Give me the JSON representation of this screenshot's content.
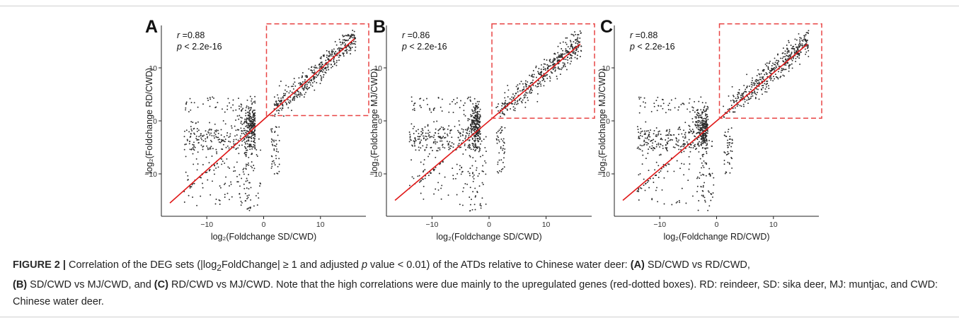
{
  "figure": {
    "panels": [
      {
        "letter": "A",
        "r_label": "r",
        "r_value": "=0.88",
        "p_label": "p",
        "p_value": " < 2.2e-16"
      },
      {
        "letter": "B",
        "r_label": "r",
        "r_value": "=0.86",
        "p_label": "p",
        "p_value": " < 2.2e-16"
      },
      {
        "letter": "C",
        "r_label": "r",
        "r_value": "=0.88",
        "p_label": "p",
        "p_value": " < 2.2e-16"
      }
    ]
  },
  "caption": {
    "lead": "FIGURE 2 |",
    "t1": " Correlation of the DEG sets (|log",
    "sub": "2",
    "t2": "FoldChange| ≥ 1 and adjusted ",
    "p": "p",
    "t3": " value < 0.01) of the ATDs relative to Chinese water deer: ",
    "a": "(A)",
    "t4": " SD/CWD vs RD/CWD,",
    "b": "(B)",
    "t5": " SD/CWD vs MJ/CWD, and ",
    "c": "(C)",
    "t6": " RD/CWD vs MJ/CWD. Note that the high correlations were due mainly to the upregulated genes (red-dotted boxes). RD: reindeer, SD: sika deer, MJ: muntjac, and CWD: Chinese water deer."
  },
  "colors": {
    "points": "#2b2b2b",
    "fit_line": "#e01818",
    "box": "#e84545",
    "axis": "#222222"
  },
  "chart_data": [
    {
      "type": "scatter",
      "panel": "A",
      "xlabel": "log₂(Foldchange SD/CWD)",
      "ylabel": "log₂(Foldchange RD/CWD)",
      "xticks": [
        -10,
        0,
        10
      ],
      "yticks": [
        -10,
        0,
        10
      ],
      "xlim": [
        -18,
        18
      ],
      "ylim": [
        -18,
        18
      ],
      "annotation": {
        "r": 0.88,
        "p": "< 2.2e-16"
      },
      "fit_line": {
        "x": [
          -16.5,
          16.0
        ],
        "y": [
          -15.5,
          15.5
        ]
      },
      "box": {
        "x": [
          0.5,
          18.5
        ],
        "y": [
          1.0,
          18.3
        ]
      },
      "grid": false,
      "seed": 11
    },
    {
      "type": "scatter",
      "panel": "B",
      "xlabel": "log₂(Foldchange SD/CWD)",
      "ylabel": "log₂(Foldchange MJ/CWD)",
      "xticks": [
        -10,
        0,
        10
      ],
      "yticks": [
        -10,
        0,
        10
      ],
      "xlim": [
        -18,
        18
      ],
      "ylim": [
        -18,
        18
      ],
      "annotation": {
        "r": 0.86,
        "p": "< 2.2e-16"
      },
      "fit_line": {
        "x": [
          -16.5,
          16.0
        ],
        "y": [
          -15.0,
          14.5
        ]
      },
      "box": {
        "x": [
          0.5,
          18.5
        ],
        "y": [
          0.5,
          18.3
        ]
      },
      "grid": false,
      "seed": 23
    },
    {
      "type": "scatter",
      "panel": "C",
      "xlabel": "log₂(Foldchange RD/CWD)",
      "ylabel": "log₂(Foldchange MJ/CWD)",
      "xticks": [
        -10,
        0,
        10
      ],
      "yticks": [
        -10,
        0,
        10
      ],
      "xlim": [
        -18,
        18
      ],
      "ylim": [
        -18,
        18
      ],
      "annotation": {
        "r": 0.88,
        "p": "< 2.2e-16"
      },
      "fit_line": {
        "x": [
          -16.5,
          16.0
        ],
        "y": [
          -15.0,
          14.5
        ]
      },
      "box": {
        "x": [
          0.5,
          18.5
        ],
        "y": [
          0.5,
          18.3
        ]
      },
      "grid": false,
      "seed": 37
    }
  ]
}
